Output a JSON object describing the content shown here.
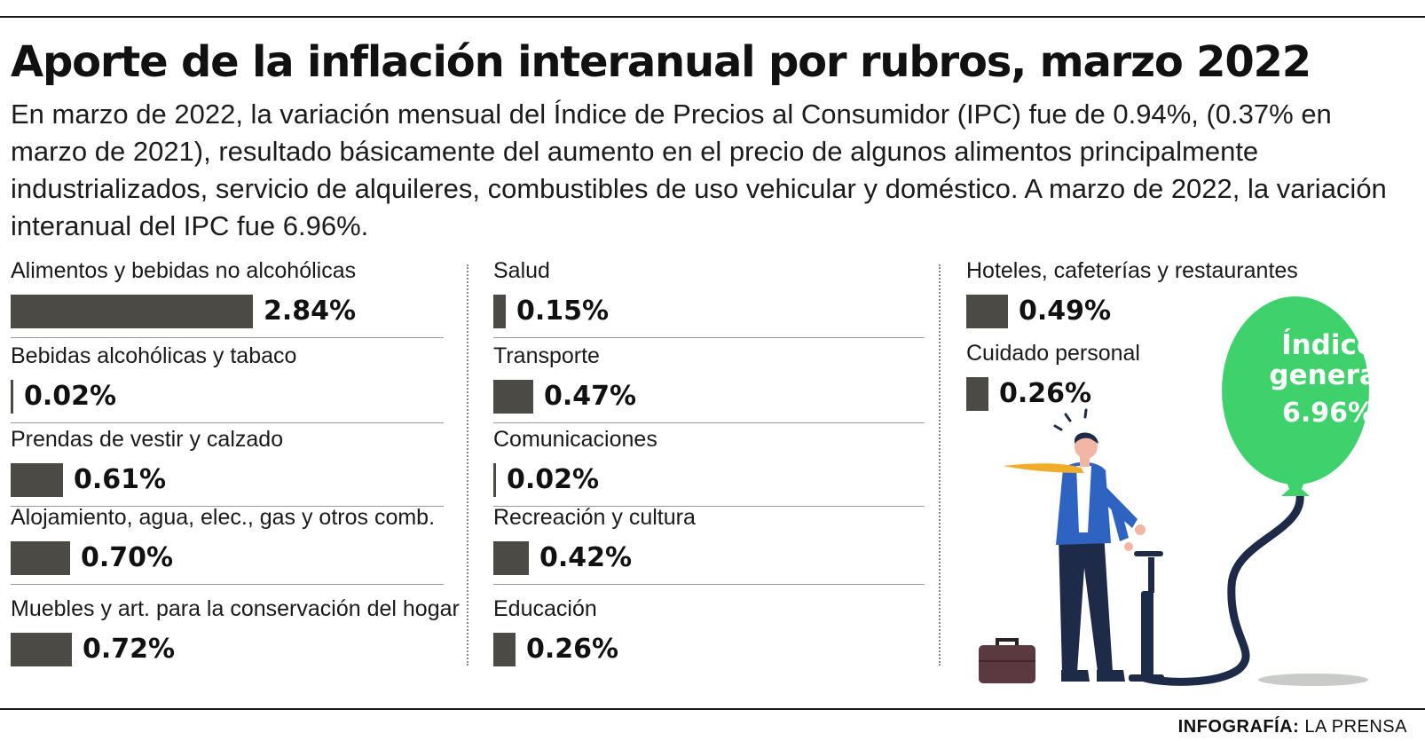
{
  "title": "Aporte de la inflación interanual por rubros, marzo 2022",
  "description": "En marzo de 2022, la variación mensual del Índice de Precios al Consumidor (IPC) fue de 0.94%, (0.37% en marzo de 2021), resultado básicamente del aumento en el precio de algunos alimentos principalmente industrializados, servicio de alquileres, combustibles de uso vehicular y doméstico. A marzo de 2022, la variación interanual del IPC fue 6.96%.",
  "balloon": {
    "title": "Índice general",
    "value": "6.96%"
  },
  "credit": {
    "label": "INFOGRAFÍA:",
    "source": "LA PRENSA"
  },
  "colors": {
    "bar": "#4b4a45",
    "balloon": "#3fd16b",
    "text": "#111111"
  },
  "chart_data": {
    "type": "bar",
    "title": "Aporte de la inflación interanual por rubros, marzo 2022",
    "unit": "%",
    "xlabel": "",
    "ylabel": "",
    "categories": [
      "Alimentos y bebidas no alcohólicas",
      "Bebidas alcohólicas y tabaco",
      "Prendas de vestir y calzado",
      "Alojamiento, agua, elec., gas y otros comb.",
      "Muebles y art. para la conservación del hogar",
      "Salud",
      "Transporte",
      "Comunicaciones",
      "Recreación y cultura",
      "Educación",
      "Hoteles, cafeterías y restaurantes",
      "Cuidado personal"
    ],
    "values": [
      2.84,
      0.02,
      0.61,
      0.7,
      0.72,
      0.15,
      0.47,
      0.02,
      0.42,
      0.26,
      0.49,
      0.26
    ],
    "value_labels": [
      "2.84%",
      "0.02%",
      "0.61%",
      "0.70%",
      "0.72%",
      "0.15%",
      "0.47%",
      "0.02%",
      "0.42%",
      "0.26%",
      "0.49%",
      "0.26%"
    ],
    "total": {
      "label": "Índice general",
      "value": 6.96
    }
  }
}
